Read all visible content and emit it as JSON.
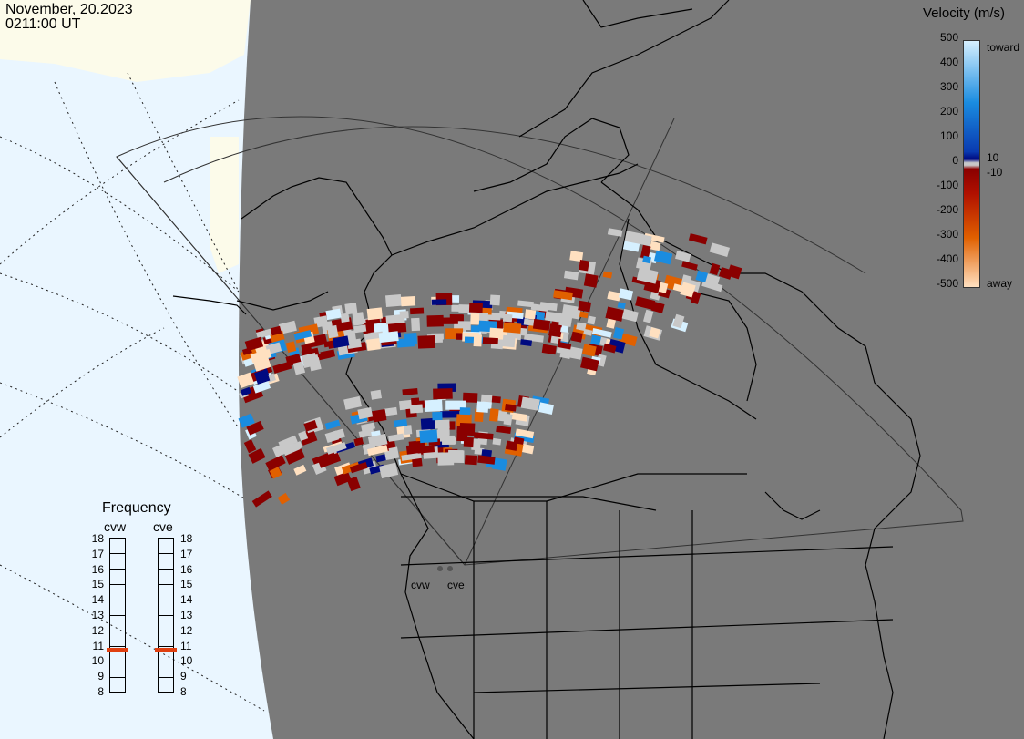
{
  "header": {
    "date": "November, 20.2023",
    "time": "0211:00 UT"
  },
  "colorbar": {
    "title": "Velocity (m/s)",
    "ticks": [
      "500",
      "400",
      "300",
      "200",
      "100",
      "0",
      "-100",
      "-200",
      "-300",
      "-400",
      "-500"
    ],
    "label_toward": "toward",
    "label_away": "away",
    "mid_top": "10",
    "mid_bottom": "-10",
    "colors": {
      "toward_high": "#d6f0ff",
      "toward_mid": "#1a8ce0",
      "toward_low": "#000a80",
      "zero_band": "#c8c8c8",
      "away_low": "#8a0000",
      "away_mid": "#e06000",
      "away_high": "#ffe0c0"
    }
  },
  "frequency": {
    "title": "Frequency",
    "stations": [
      {
        "name": "cvw",
        "value_mhz": 10.7
      },
      {
        "name": "cve",
        "value_mhz": 10.7
      }
    ],
    "scale": [
      "18",
      "17",
      "16",
      "15",
      "14",
      "13",
      "12",
      "11",
      "10",
      "9",
      "8"
    ],
    "marker_color": "#e04010"
  },
  "map": {
    "land_color": "#7a7a7a",
    "water_color": "#eaf6ff",
    "offfield_land_color": "#fcfbea",
    "radar_sites": [
      {
        "label": "cvw"
      },
      {
        "label": "cve"
      }
    ]
  }
}
